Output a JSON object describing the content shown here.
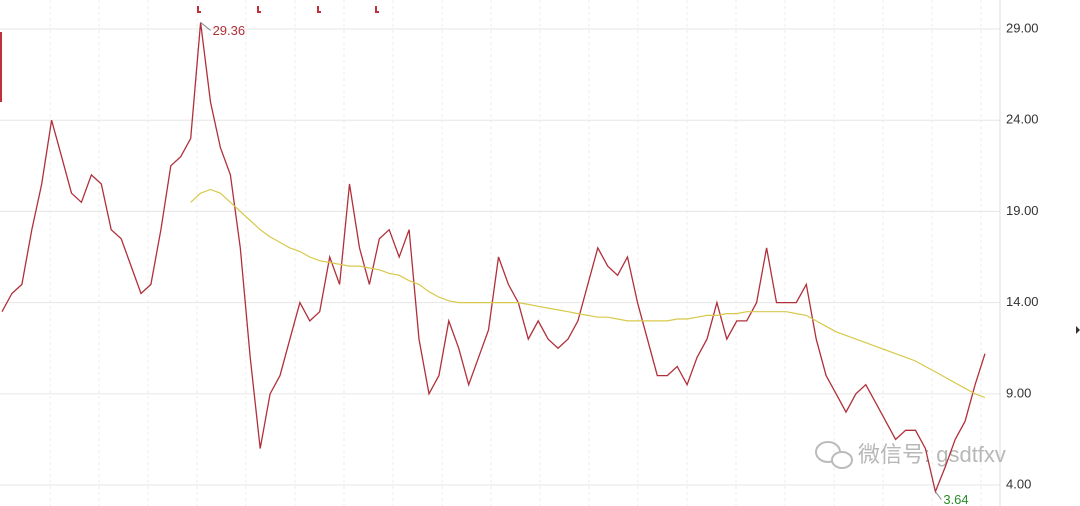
{
  "chart_data": {
    "type": "line",
    "series": [
      {
        "color": "#b0303a",
        "values": [
          13.5,
          14.5,
          15,
          18,
          20.5,
          24,
          22,
          20,
          19.5,
          21,
          20.5,
          18,
          17.5,
          16,
          14.5,
          15,
          18,
          21.5,
          22,
          23,
          29.36,
          25,
          22.5,
          21,
          17,
          11,
          6,
          9,
          10,
          12,
          14,
          13,
          13.5,
          16.5,
          15,
          20.5,
          17,
          15,
          17.5,
          18,
          16.5,
          18,
          12,
          9,
          10,
          13,
          11.5,
          9.5,
          11,
          12.5,
          16.5,
          15,
          14,
          12,
          13,
          12,
          11.5,
          12,
          13,
          15,
          17,
          16,
          15.5,
          16.5,
          14,
          12,
          10,
          10,
          10.5,
          9.5,
          11,
          12,
          14,
          12,
          13,
          13,
          14,
          17,
          14,
          14,
          14,
          15,
          12,
          10,
          9,
          8,
          9,
          9.5,
          8.5,
          7.5,
          6.5,
          7,
          7,
          6,
          3.64,
          5,
          6.5,
          7.5,
          9.5,
          11.2
        ]
      },
      {
        "color": "#d8c84a",
        "values": [
          null,
          null,
          null,
          null,
          null,
          null,
          null,
          null,
          null,
          null,
          null,
          null,
          null,
          null,
          null,
          null,
          null,
          null,
          null,
          19.5,
          20,
          20.2,
          20,
          19.5,
          19,
          18.5,
          18,
          17.6,
          17.3,
          17,
          16.8,
          16.5,
          16.3,
          16.2,
          16.1,
          16,
          16,
          15.9,
          15.8,
          15.6,
          15.5,
          15.2,
          15,
          14.6,
          14.3,
          14.1,
          14,
          14,
          14,
          14,
          14,
          14,
          14,
          13.9,
          13.8,
          13.7,
          13.6,
          13.5,
          13.4,
          13.3,
          13.2,
          13.2,
          13.1,
          13,
          13,
          13,
          13,
          13,
          13.1,
          13.1,
          13.2,
          13.3,
          13.3,
          13.4,
          13.4,
          13.5,
          13.5,
          13.5,
          13.5,
          13.5,
          13.4,
          13.3,
          13,
          12.7,
          12.4,
          12.2,
          12,
          11.8,
          11.6,
          11.4,
          11.2,
          11,
          10.8,
          10.5,
          10.2,
          9.9,
          9.6,
          9.3,
          9.0,
          8.8
        ]
      }
    ],
    "ylim": [
      2.85,
      30.59
    ],
    "yticks": [
      {
        "value": 4,
        "label": "4.00"
      },
      {
        "value": 9,
        "label": "9.00"
      },
      {
        "value": 14,
        "label": "14.00"
      },
      {
        "value": 19,
        "label": "19.00"
      },
      {
        "value": 24,
        "label": "24.00"
      },
      {
        "value": 29,
        "label": "29.00"
      }
    ],
    "grid": true,
    "watermark": "微信号: gsdtfxv"
  }
}
